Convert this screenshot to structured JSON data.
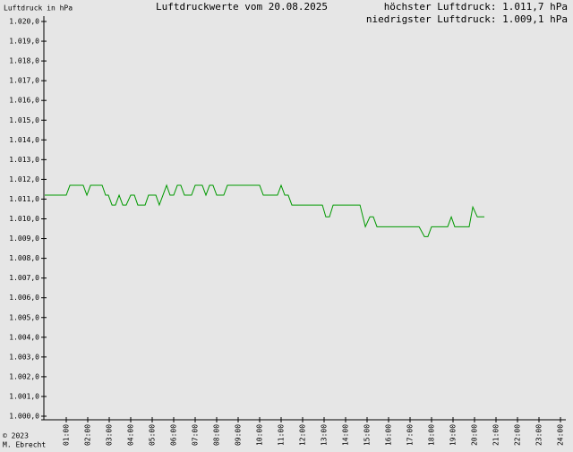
{
  "chart_data": {
    "type": "line",
    "title": "Luftdruckwerte vom 20.08.2025",
    "ylabel": "Luftdruck in hPa",
    "annotations": [
      "höchster Luftdruck: 1.011,7 hPa",
      "niedrigster Luftdruck: 1.009,1 hPa"
    ],
    "footer": [
      "© 2023",
      "M. Ebrecht"
    ],
    "x": [
      0,
      1,
      1.17,
      1.79,
      1.96,
      2.13,
      2.67,
      2.83,
      2.96,
      3.13,
      3.29,
      3.46,
      3.63,
      3.79,
      4.0,
      4.17,
      4.33,
      4.67,
      4.83,
      5.17,
      5.33,
      5.5,
      5.67,
      5.83,
      6.0,
      6.17,
      6.33,
      6.5,
      6.83,
      7.0,
      7.33,
      7.5,
      7.67,
      7.83,
      8.0,
      8.33,
      8.5,
      10.0,
      10.17,
      10.83,
      11.0,
      11.17,
      11.33,
      11.5,
      12.92,
      13.08,
      13.25,
      13.42,
      14.67,
      14.92,
      15.13,
      15.29,
      15.46,
      17.42,
      17.67,
      17.83,
      18.0,
      18.75,
      18.92,
      19.08,
      19.75,
      19.92,
      20.13,
      20.46
    ],
    "series": [
      {
        "name": "Luftdruck",
        "color": "#009900",
        "values": [
          1011.2,
          1011.2,
          1011.7,
          1011.7,
          1011.2,
          1011.7,
          1011.7,
          1011.2,
          1011.2,
          1010.7,
          1010.7,
          1011.2,
          1010.7,
          1010.7,
          1011.2,
          1011.2,
          1010.7,
          1010.7,
          1011.2,
          1011.2,
          1010.7,
          1011.2,
          1011.7,
          1011.2,
          1011.2,
          1011.7,
          1011.7,
          1011.2,
          1011.2,
          1011.7,
          1011.7,
          1011.2,
          1011.7,
          1011.7,
          1011.2,
          1011.2,
          1011.7,
          1011.7,
          1011.2,
          1011.2,
          1011.7,
          1011.2,
          1011.2,
          1010.7,
          1010.7,
          1010.1,
          1010.1,
          1010.7,
          1010.7,
          1009.6,
          1010.1,
          1010.1,
          1009.6,
          1009.6,
          1009.1,
          1009.1,
          1009.6,
          1009.6,
          1010.1,
          1009.6,
          1009.6,
          1010.6,
          1010.1,
          1010.1
        ]
      }
    ],
    "xlim": [
      0,
      24
    ],
    "xticks": [
      {
        "value": 1,
        "label": "01:00"
      },
      {
        "value": 2,
        "label": "02:00"
      },
      {
        "value": 3,
        "label": "03:00"
      },
      {
        "value": 4,
        "label": "04:00"
      },
      {
        "value": 5,
        "label": "05:00"
      },
      {
        "value": 6,
        "label": "06:00"
      },
      {
        "value": 7,
        "label": "07:00"
      },
      {
        "value": 8,
        "label": "08:00"
      },
      {
        "value": 9,
        "label": "09:00"
      },
      {
        "value": 10,
        "label": "10:00"
      },
      {
        "value": 11,
        "label": "11:00"
      },
      {
        "value": 12,
        "label": "12:00"
      },
      {
        "value": 13,
        "label": "13:00"
      },
      {
        "value": 14,
        "label": "14:00"
      },
      {
        "value": 15,
        "label": "15:00"
      },
      {
        "value": 16,
        "label": "16:00"
      },
      {
        "value": 17,
        "label": "17:00"
      },
      {
        "value": 18,
        "label": "18:00"
      },
      {
        "value": 19,
        "label": "19:00"
      },
      {
        "value": 20,
        "label": "20:00"
      },
      {
        "value": 21,
        "label": "21:00"
      },
      {
        "value": 22,
        "label": "22:00"
      },
      {
        "value": 23,
        "label": "23:00"
      },
      {
        "value": 24,
        "label": "24:00"
      }
    ],
    "ylim": [
      1000,
      1020
    ],
    "yticks": [
      {
        "value": 1000,
        "label": "1.000,0"
      },
      {
        "value": 1001,
        "label": "1.001,0"
      },
      {
        "value": 1002,
        "label": "1.002,0"
      },
      {
        "value": 1003,
        "label": "1.003,0"
      },
      {
        "value": 1004,
        "label": "1.004,0"
      },
      {
        "value": 1005,
        "label": "1.005,0"
      },
      {
        "value": 1006,
        "label": "1.006,0"
      },
      {
        "value": 1007,
        "label": "1.007,0"
      },
      {
        "value": 1008,
        "label": "1.008,0"
      },
      {
        "value": 1009,
        "label": "1.009,0"
      },
      {
        "value": 1010,
        "label": "1.010,0"
      },
      {
        "value": 1011,
        "label": "1.011,0"
      },
      {
        "value": 1012,
        "label": "1.012,0"
      },
      {
        "value": 1013,
        "label": "1.013,0"
      },
      {
        "value": 1014,
        "label": "1.014,0"
      },
      {
        "value": 1015,
        "label": "1.015,0"
      },
      {
        "value": 1016,
        "label": "1.016,0"
      },
      {
        "value": 1017,
        "label": "1.017,0"
      },
      {
        "value": 1018,
        "label": "1.018,0"
      },
      {
        "value": 1019,
        "label": "1.019,0"
      },
      {
        "value": 1020,
        "label": "1.020,0"
      }
    ],
    "grid": false
  }
}
